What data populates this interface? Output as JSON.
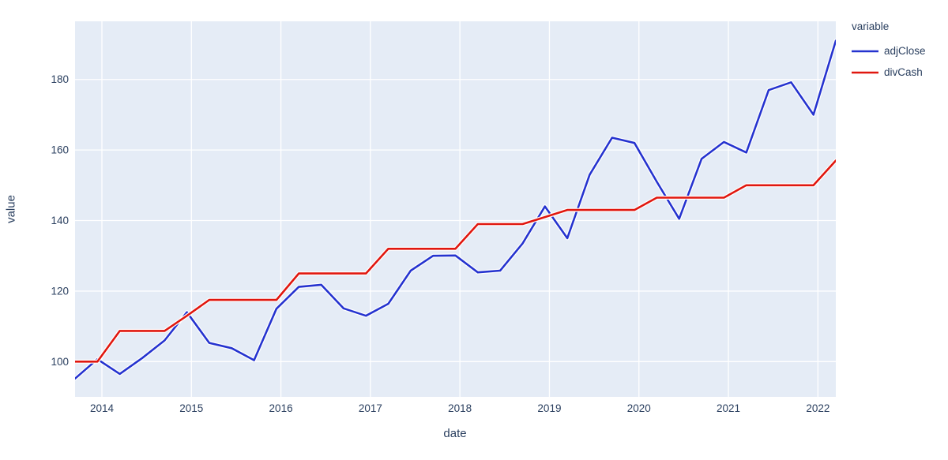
{
  "figure": {
    "x_axis_label": "date",
    "y_axis_label": "value",
    "legend_title": "variable"
  },
  "colors": {
    "adjClose": "#2533cf",
    "divCash": "#e0170f",
    "plot_background": "#e5ecf6",
    "gridline": "#ffffff",
    "text": "#2a3f5f",
    "outer_background": "#ffffff"
  },
  "chart_data": {
    "type": "line",
    "title": "",
    "xlabel": "date",
    "ylabel": "value",
    "legend_title": "variable",
    "legend_position": "top-right-outside",
    "grid": true,
    "x_units": "decimal years (quarterly observations)",
    "xlim": [
      2013.7,
      2022.2
    ],
    "ylim": [
      90,
      196.5
    ],
    "xticks": [
      2014,
      2015,
      2016,
      2017,
      2018,
      2019,
      2020,
      2021,
      2022
    ],
    "yticks": [
      100,
      120,
      140,
      160,
      180
    ],
    "x": [
      2013.7,
      2013.95,
      2014.2,
      2014.45,
      2014.7,
      2014.95,
      2015.2,
      2015.45,
      2015.7,
      2015.95,
      2016.2,
      2016.45,
      2016.7,
      2016.95,
      2017.2,
      2017.45,
      2017.7,
      2017.95,
      2018.2,
      2018.45,
      2018.7,
      2018.95,
      2019.2,
      2019.45,
      2019.7,
      2019.95,
      2020.2,
      2020.45,
      2020.7,
      2020.95,
      2021.2,
      2021.45,
      2021.7,
      2021.95,
      2022.2
    ],
    "series": [
      {
        "name": "adjClose",
        "color": "#2533cf",
        "values": [
          95.2,
          100.7,
          96.5,
          101,
          106,
          114,
          105.3,
          103.8,
          100.4,
          115,
          121.2,
          121.8,
          115.1,
          113,
          116.4,
          125.8,
          130,
          130.1,
          125.3,
          125.8,
          133.5,
          144,
          135,
          153,
          163.5,
          162,
          151,
          140.5,
          157.5,
          162.3,
          159.3,
          177,
          179.2,
          170,
          191
        ]
      },
      {
        "name": "divCash",
        "color": "#e0170f",
        "values": [
          100,
          100,
          108.7,
          108.7,
          108.7,
          113,
          117.5,
          117.5,
          117.5,
          117.5,
          125,
          125,
          125,
          125,
          132,
          132,
          132,
          132,
          139,
          139,
          139,
          141,
          143,
          143,
          143,
          143,
          146.5,
          146.5,
          146.5,
          146.5,
          150,
          150,
          150,
          150,
          157
        ]
      }
    ]
  }
}
